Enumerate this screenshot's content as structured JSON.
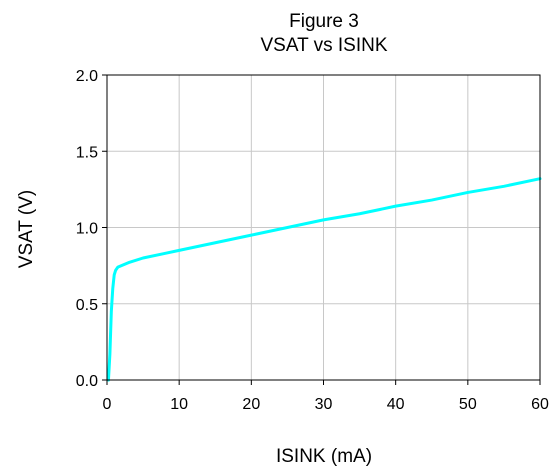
{
  "chart_data": {
    "type": "line",
    "title": "Figure 3",
    "subtitle": "VSAT vs ISINK",
    "xlabel": "ISINK (mA)",
    "ylabel": "VSAT (V)",
    "xlim": [
      0,
      60
    ],
    "ylim": [
      0,
      2.0
    ],
    "xticks": [
      "0",
      "10",
      "20",
      "30",
      "40",
      "50",
      "60"
    ],
    "yticks": [
      "0.0",
      "0.5",
      "1.0",
      "1.5",
      "2.0"
    ],
    "grid": true,
    "legend": "none",
    "series": [
      {
        "color": "#00ffff",
        "x": [
          0.2,
          0.4,
          0.6,
          0.8,
          1.0,
          1.2,
          1.5,
          2,
          3,
          5,
          8,
          10,
          15,
          20,
          25,
          30,
          35,
          40,
          45,
          50,
          55,
          60
        ],
        "y": [
          0.0,
          0.17,
          0.45,
          0.6,
          0.69,
          0.72,
          0.74,
          0.75,
          0.77,
          0.8,
          0.83,
          0.85,
          0.9,
          0.95,
          1.0,
          1.05,
          1.09,
          1.14,
          1.18,
          1.23,
          1.27,
          1.32
        ]
      }
    ]
  }
}
